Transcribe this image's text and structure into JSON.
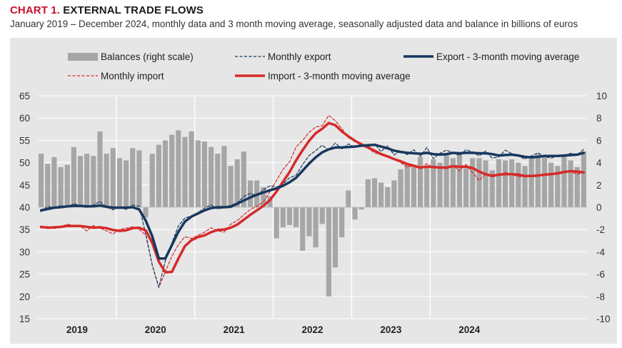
{
  "header": {
    "label": "CHART 1.",
    "title": "EXTERNAL TRADE FLOWS",
    "subtitle": "January 2019 – December 2024, monthly data and 3 month moving average, seasonally adjusted data and balance in billions of euros"
  },
  "colors": {
    "panel": "#e6e6e6",
    "bars": "#a6a6a6",
    "export": "#17375e",
    "import": "#d62a2a",
    "accent": "#c8102e"
  },
  "chart_data": {
    "type": "bar+line",
    "left_axis": {
      "min": 15,
      "max": 65,
      "ticks": [
        "65",
        "60",
        "55",
        "50",
        "45",
        "40",
        "35",
        "30",
        "25",
        "20",
        "15"
      ]
    },
    "right_axis": {
      "min": -10,
      "max": 10,
      "ticks": [
        "10",
        "8",
        "6",
        "4",
        "2",
        "0",
        "-2",
        "-4",
        "-6",
        "-8",
        "-10"
      ]
    },
    "years": [
      "2019",
      "2020",
      "2021",
      "2022",
      "2023",
      "2024"
    ],
    "legend": [
      {
        "key": "balance",
        "label": "Balances (right scale)"
      },
      {
        "key": "monthly_export",
        "label": "Monthly export"
      },
      {
        "key": "export_ma",
        "label": "Export - 3-month moving average"
      },
      {
        "key": "monthly_import",
        "label": "Monthly import"
      },
      {
        "key": "import_ma",
        "label": "Import - 3-month moving average"
      }
    ],
    "series": [
      {
        "name": "Balances (right scale)",
        "axis": "right",
        "kind": "bar",
        "values": [
          4.8,
          3.9,
          4.5,
          3.6,
          3.8,
          5.4,
          4.6,
          4.8,
          4.6,
          6.8,
          4.8,
          5.3,
          4.4,
          4.2,
          5.3,
          5.1,
          -0.9,
          4.8,
          5.6,
          6.0,
          6.5,
          6.9,
          6.3,
          6.8,
          6.0,
          5.9,
          5.4,
          4.8,
          5.5,
          3.7,
          4.3,
          5.0,
          2.4,
          2.4,
          1.8,
          1.0,
          -2.8,
          -1.8,
          -1.6,
          -1.8,
          -3.9,
          -2.6,
          -3.6,
          -1.5,
          -8.0,
          -5.4,
          -2.7,
          1.5,
          -1.1,
          -0.2,
          2.5,
          2.6,
          2.2,
          1.8,
          2.4,
          3.4,
          3.9,
          3.6,
          4.5,
          3.6,
          4.3,
          4.0,
          4.8,
          4.4,
          4.9,
          3.5,
          4.4,
          4.4,
          4.2,
          3.3,
          4.3,
          4.2,
          4.3,
          4.0,
          3.7,
          4.6,
          4.8,
          4.5,
          4.0,
          3.7,
          4.6,
          4.2,
          3.6,
          5.0
        ]
      },
      {
        "name": "Monthly export",
        "axis": "left",
        "kind": "dashed-line",
        "values": [
          39.0,
          40.2,
          39.8,
          40.4,
          40.0,
          40.8,
          40.3,
          39.9,
          40.5,
          41.3,
          40.0,
          39.4,
          40.1,
          39.5,
          40.5,
          40.2,
          34.0,
          27.0,
          22.0,
          28.0,
          32.0,
          35.8,
          37.6,
          38.0,
          38.8,
          39.8,
          40.5,
          39.6,
          39.9,
          40.4,
          41.0,
          42.4,
          43.1,
          42.6,
          43.9,
          44.8,
          44.5,
          45.2,
          46.6,
          47.2,
          49.6,
          51.6,
          52.7,
          53.9,
          52.8,
          54.4,
          53.1,
          54.2,
          53.5,
          54.3,
          53.5,
          54.2,
          52.5,
          53.8,
          51.7,
          52.7,
          51.8,
          52.9,
          51.4,
          53.4,
          50.9,
          52.1,
          52.8,
          52.2,
          51.6,
          52.9,
          52.4,
          51.5,
          52.6,
          51.0,
          51.3,
          52.8,
          52.0,
          51.5,
          50.8,
          51.5,
          52.2,
          51.4,
          51.0,
          51.6,
          51.5,
          52.1,
          51.8,
          53.0
        ]
      },
      {
        "name": "Export - 3-month moving average",
        "axis": "left",
        "kind": "line",
        "values": [
          39.3,
          39.6,
          39.9,
          40.0,
          40.2,
          40.3,
          40.3,
          40.2,
          40.2,
          40.4,
          40.1,
          39.9,
          39.9,
          39.9,
          40.0,
          39.5,
          37.0,
          33.5,
          28.5,
          28.5,
          31.5,
          34.5,
          36.8,
          37.9,
          38.6,
          39.3,
          39.8,
          40.0,
          40.0,
          40.1,
          40.8,
          41.5,
          42.2,
          42.8,
          43.3,
          43.8,
          44.2,
          44.8,
          45.6,
          46.6,
          48.2,
          49.8,
          51.2,
          52.3,
          53.0,
          53.4,
          53.4,
          53.5,
          53.6,
          53.8,
          53.9,
          54.0,
          53.6,
          53.2,
          52.7,
          52.4,
          52.2,
          52.1,
          52.0,
          52.2,
          51.9,
          51.8,
          51.9,
          52.2,
          52.1,
          52.2,
          52.2,
          52.1,
          52.1,
          51.9,
          51.6,
          51.7,
          51.8,
          51.6,
          51.3,
          51.2,
          51.3,
          51.5,
          51.5,
          51.5,
          51.6,
          51.7,
          51.8,
          52.2
        ]
      },
      {
        "name": "Monthly import",
        "axis": "left",
        "kind": "dashed-line",
        "values": [
          35.3,
          35.7,
          35.2,
          35.6,
          36.2,
          35.9,
          35.7,
          34.7,
          35.9,
          35.3,
          34.7,
          34.0,
          35.0,
          35.3,
          35.6,
          35.0,
          33.8,
          27.0,
          22.0,
          25.5,
          29.0,
          31.6,
          33.4,
          33.0,
          33.7,
          34.4,
          35.4,
          34.7,
          34.4,
          36.2,
          37.0,
          38.3,
          39.5,
          40.2,
          41.2,
          43.5,
          46.0,
          48.5,
          50.2,
          53.5,
          55.0,
          56.8,
          58.0,
          58.3,
          60.6,
          59.4,
          57.6,
          55.6,
          54.8,
          54.0,
          53.2,
          52.2,
          51.8,
          51.6,
          50.7,
          50.0,
          49.0,
          49.3,
          48.6,
          49.8,
          48.8,
          49.0,
          48.6,
          49.3,
          48.2,
          49.6,
          47.8,
          46.0,
          47.5,
          47.3,
          47.3,
          47.8,
          47.3,
          46.9,
          46.8,
          47.2,
          47.3,
          47.2,
          47.6,
          47.8,
          48.1,
          48.0,
          47.4,
          47.8
        ]
      },
      {
        "name": "Import - 3-month moving average",
        "axis": "left",
        "kind": "line",
        "values": [
          35.6,
          35.4,
          35.5,
          35.6,
          35.8,
          35.8,
          35.8,
          35.6,
          35.4,
          35.5,
          35.3,
          34.9,
          34.7,
          34.8,
          35.3,
          35.4,
          34.8,
          32.0,
          27.8,
          25.4,
          25.5,
          28.5,
          31.3,
          32.6,
          33.3,
          33.7,
          34.4,
          34.9,
          35.0,
          35.4,
          36.1,
          37.2,
          38.3,
          39.3,
          40.3,
          41.6,
          43.5,
          45.7,
          47.9,
          50.5,
          52.8,
          54.9,
          56.6,
          57.6,
          58.9,
          58.4,
          57.0,
          55.9,
          54.9,
          54.1,
          53.4,
          52.7,
          51.9,
          51.4,
          50.8,
          50.3,
          49.7,
          49.3,
          48.9,
          49.1,
          49.0,
          48.9,
          48.9,
          49.2,
          49.1,
          49.1,
          48.8,
          48.0,
          47.4,
          47.0,
          47.3,
          47.4,
          47.4,
          47.3,
          47.0,
          47.0,
          47.1,
          47.3,
          47.4,
          47.6,
          47.9,
          48.1,
          48.0,
          47.8
        ]
      }
    ]
  }
}
